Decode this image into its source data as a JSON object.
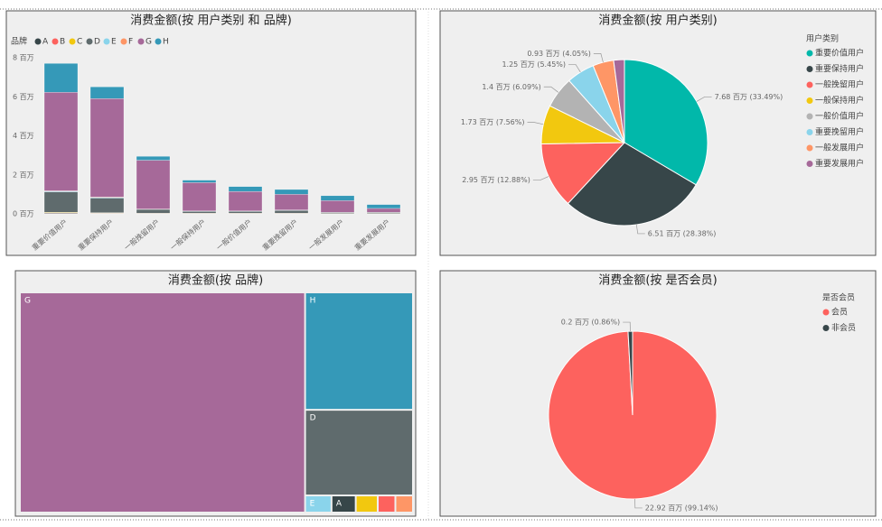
{
  "chart_data": [
    {
      "type": "bar",
      "stacked": true,
      "title": "消费金额(按 用户类别 和 品牌)",
      "legend_title": "品牌",
      "categories": [
        "重要价值用户",
        "重要保持用户",
        "一般挽留用户",
        "一般保持用户",
        "一般价值用户",
        "重要挽留用户",
        "一般发展用户",
        "重要发展用户"
      ],
      "ylim": [
        0,
        8
      ],
      "yticks": [
        {
          "value": 0,
          "label": "0 百万"
        },
        {
          "value": 2,
          "label": "2 百万"
        },
        {
          "value": 4,
          "label": "4 百万"
        },
        {
          "value": 6,
          "label": "6 百万"
        },
        {
          "value": 8,
          "label": "8 百万"
        }
      ],
      "grid": false,
      "series": [
        {
          "name": "A",
          "color": "#374649",
          "values": [
            0.03,
            0.02,
            0.01,
            0.01,
            0.01,
            0.01,
            0.01,
            0.01
          ]
        },
        {
          "name": "B",
          "color": "#FD625E",
          "values": [
            0.02,
            0.02,
            0.01,
            0.01,
            0.01,
            0.01,
            0,
            0
          ]
        },
        {
          "name": "C",
          "color": "#F2C80F",
          "values": [
            0.03,
            0.02,
            0.01,
            0.01,
            0.01,
            0.01,
            0.01,
            0.01
          ]
        },
        {
          "name": "D",
          "color": "#5F6B6D",
          "values": [
            1.05,
            0.75,
            0.2,
            0.1,
            0.1,
            0.15,
            0.05,
            0.05
          ]
        },
        {
          "name": "E",
          "color": "#8AD4EB",
          "values": [
            0.03,
            0.03,
            0.01,
            0.01,
            0.01,
            0.01,
            0.01,
            0.01
          ]
        },
        {
          "name": "F",
          "color": "#FE9666",
          "values": [
            0.02,
            0.02,
            0.01,
            0.01,
            0.01,
            0.01,
            0,
            0
          ]
        },
        {
          "name": "G",
          "color": "#A66999",
          "values": [
            5.05,
            5.05,
            2.5,
            1.45,
            1.0,
            0.8,
            0.6,
            0.2
          ]
        },
        {
          "name": "H",
          "color": "#3599B8",
          "values": [
            1.48,
            0.6,
            0.2,
            0.13,
            0.25,
            0.25,
            0.25,
            0.2
          ]
        }
      ]
    },
    {
      "type": "pie",
      "title": "消费金额(按 用户类别)",
      "legend_title": "用户类别",
      "categories": [
        "重要价值用户",
        "重要保持用户",
        "一般挽留用户",
        "一般保持用户",
        "一般价值用户",
        "重要挽留用户",
        "一般发展用户",
        "重要发展用户"
      ],
      "values": [
        7.68,
        6.51,
        2.95,
        1.73,
        1.4,
        1.25,
        0.93,
        0.48
      ],
      "value_labels": [
        "7.68 百万 (33.49%)",
        "6.51 百万 (28.38%)",
        "2.95 百万 (12.88%)",
        "1.73 百万 (7.56%)",
        "1.4 百万 (6.09%)",
        "1.25 百万 (5.45%)",
        "0.93 百万 (4.05%)",
        null
      ],
      "colors": [
        "#01B8AA",
        "#374649",
        "#FD625E",
        "#F2C80F",
        "#B3B3B3",
        "#8AD4EB",
        "#FE9666",
        "#A66999"
      ]
    },
    {
      "type": "treemap",
      "title": "消费金额(按 品牌)",
      "categories": [
        "G",
        "H",
        "D",
        "E",
        "A",
        null,
        null,
        null
      ],
      "values": [
        16.65,
        3.36,
        2.45,
        0.12,
        0.11,
        0.1,
        0.08,
        0.08
      ],
      "colors": [
        "#A66999",
        "#3599B8",
        "#5F6B6D",
        "#8AD4EB",
        "#374649",
        "#F2C80F",
        "#FD625E",
        "#FE9666"
      ]
    },
    {
      "type": "pie",
      "title": "消费金额(按 是否会员)",
      "legend_title": "是否会员",
      "categories": [
        "会员",
        "非会员"
      ],
      "values": [
        22.92,
        0.2
      ],
      "value_labels": [
        "22.92 百万 (99.14%)",
        "0.2 百万 (0.86%)"
      ],
      "colors": [
        "#FD625E",
        "#374649"
      ]
    }
  ]
}
